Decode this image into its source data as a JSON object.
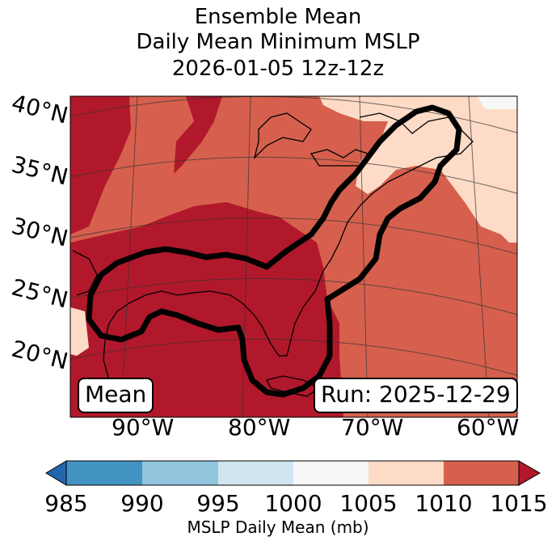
{
  "title": {
    "line1": "Ensemble Mean",
    "line2": "Daily Mean Minimum MSLP",
    "line3": "2026-01-05 12z-12z"
  },
  "map": {
    "lat_labels": [
      "40°N",
      "35°N",
      "30°N",
      "25°N",
      "20°N"
    ],
    "lon_labels": [
      "90°W",
      "80°W",
      "70°W",
      "60°W"
    ],
    "mean_box": "Mean",
    "run_box": "Run: 2025-12-29",
    "colors": {
      "darkest_red": "#b2182b",
      "red": "#d6604d",
      "light_peach": "#fddbc7",
      "near_white": "#f7f7f7",
      "light_blue": "#d1e5f0",
      "mid_blue": "#92c5de",
      "blue": "#4393c3",
      "dark_blue": "#2166ac"
    }
  },
  "colorbar": {
    "ticks": [
      "985",
      "990",
      "995",
      "1000",
      "1005",
      "1010",
      "1015"
    ],
    "label": "MSLP Daily Mean (mb)",
    "bins": [
      {
        "range": "<985",
        "color": "#2166ac"
      },
      {
        "range": "985-990",
        "color": "#4393c3"
      },
      {
        "range": "990-995",
        "color": "#92c5de"
      },
      {
        "range": "995-1000",
        "color": "#d1e5f0"
      },
      {
        "range": "1000-1005",
        "color": "#f7f7f7"
      },
      {
        "range": "1005-1010",
        "color": "#fddbc7"
      },
      {
        "range": "1010-1015",
        "color": "#d6604d"
      },
      {
        "range": ">1015",
        "color": "#b2182b"
      }
    ]
  }
}
